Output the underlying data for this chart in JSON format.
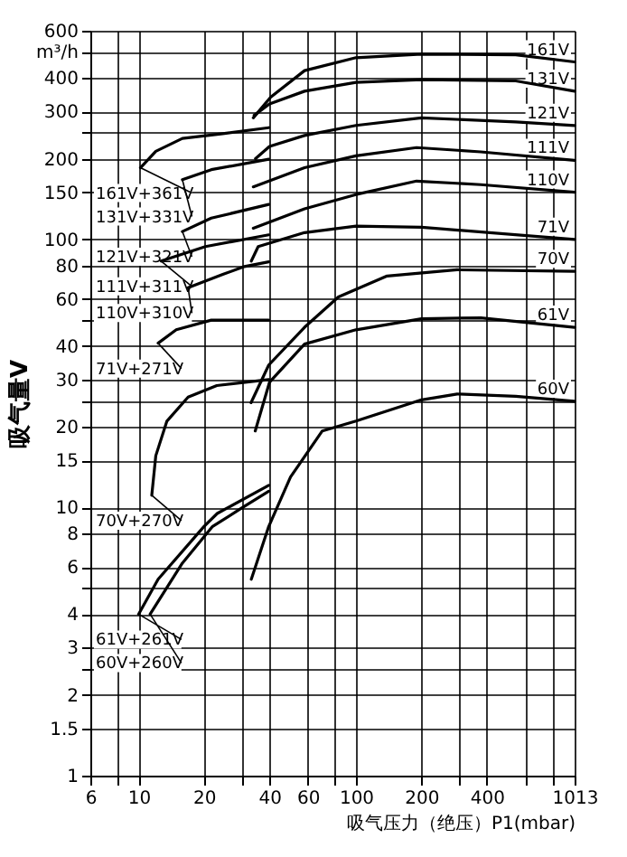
{
  "chart_data": {
    "type": "line",
    "ylabel": "吸气量V",
    "xlabel": "吸气压力（绝压）P1(mbar)",
    "log": "xy",
    "grid": true,
    "xlim": [
      6,
      1013
    ],
    "ylim": [
      1,
      600
    ],
    "xticks": [
      6,
      {
        "value": 8,
        "label": null
      },
      10,
      20,
      {
        "value": 30,
        "label": null
      },
      40,
      60,
      {
        "value": 80,
        "label": null
      },
      100,
      200,
      {
        "value": 300,
        "label": null
      },
      400,
      {
        "value": 600,
        "label": null
      },
      {
        "value": 800,
        "label": null
      },
      1013
    ],
    "yticks": [
      1,
      1.5,
      2,
      {
        "value": 2.5,
        "label": null
      },
      3,
      4,
      {
        "value": 5,
        "label": null
      },
      6,
      8,
      10,
      15,
      20,
      {
        "value": 25,
        "label": null
      },
      30,
      40,
      {
        "value": 50,
        "label": null
      },
      60,
      80,
      100,
      150,
      200,
      {
        "value": 250,
        "label": null
      },
      300,
      400,
      {
        "value": 500,
        "label": "m³/h"
      },
      600
    ],
    "series": [
      {
        "name": "161V",
        "color": "#000000",
        "x": [
          33.7,
          40.5,
          58,
          100,
          200,
          543,
          1013
        ],
        "values": [
          284,
          339,
          426,
          476,
          491,
          488,
          459
        ]
      },
      {
        "name": "131V",
        "color": "#000000",
        "x": [
          34,
          40,
          58,
          100,
          200,
          543,
          1013
        ],
        "values": [
          290,
          320,
          357,
          385,
          394,
          390,
          357
        ]
      },
      {
        "name": "121V",
        "color": "#000000",
        "x": [
          34.5,
          40,
          58,
          100,
          200,
          543,
          1013
        ],
        "values": [
          200,
          222,
          244,
          266,
          284,
          274,
          266
        ]
      },
      {
        "name": "111V",
        "color": "#000000",
        "x": [
          33.7,
          58,
          100,
          190,
          375,
          1013
        ],
        "values": [
          157,
          185,
          205,
          220,
          212,
          197
        ]
      },
      {
        "name": "110V",
        "color": "#000000",
        "x": [
          33.7,
          58,
          100,
          190,
          375,
          1013
        ],
        "values": [
          110,
          130,
          147,
          165,
          160,
          150
        ]
      },
      {
        "name": "71V",
        "color": "#000000",
        "x": [
          33,
          35.5,
          58,
          100,
          200,
          1013
        ],
        "values": [
          83,
          94,
          106,
          112,
          111,
          100
        ]
      },
      {
        "name": "70V",
        "color": "#000000",
        "x": [
          32.9,
          39.7,
          58,
          83,
          139,
          292,
          1013
        ],
        "values": [
          24.6,
          34,
          47,
          61,
          73,
          77,
          76
        ]
      },
      {
        "name": "61V",
        "color": "#000000",
        "x": [
          34.4,
          40,
          58,
          100,
          200,
          375,
          1013
        ],
        "values": [
          19.3,
          29.3,
          40.7,
          46,
          50.6,
          51,
          47
        ]
      },
      {
        "name": "60V",
        "color": "#000000",
        "x": [
          33,
          39.7,
          50,
          70,
          100,
          200,
          292,
          543,
          1013
        ],
        "values": [
          5.4,
          8.5,
          13,
          19.3,
          21,
          25.2,
          26.5,
          26,
          24.9
        ]
      },
      {
        "name": "161V+361V",
        "color": "#000000",
        "x": [
          10.2,
          12,
          15.9,
          24.4,
          39.7
        ],
        "values": [
          185,
          213,
          238,
          248,
          261
        ]
      },
      {
        "name": "131V+331V",
        "color": "#000000",
        "x": [
          15.9,
          21.6,
          39.7
        ],
        "values": [
          167,
          182,
          199
        ]
      },
      {
        "name": "121V+321V",
        "color": "#000000",
        "x": [
          15.9,
          21.6,
          39.7
        ],
        "values": [
          107,
          120,
          135
        ]
      },
      {
        "name": "111V+311V",
        "color": "#000000",
        "x": [
          12.7,
          20.3,
          39.7
        ],
        "values": [
          83,
          94,
          104
        ]
      },
      {
        "name": "110V+310V",
        "color": "#000000",
        "x": [
          16.9,
          24.4,
          30.3,
          39.7
        ],
        "values": [
          66,
          74,
          79,
          82.5
        ]
      },
      {
        "name": "71V+271V",
        "color": "#000000",
        "x": [
          12.3,
          14.9,
          21.6,
          39.7
        ],
        "values": [
          41,
          46,
          50,
          50
        ]
      },
      {
        "name": "70V+270V",
        "color": "#000000",
        "x": [
          11.5,
          12,
          13.5,
          16.9,
          22.9,
          39.7
        ],
        "values": [
          11.1,
          15.6,
          21,
          25.8,
          28.5,
          30
        ]
      },
      {
        "name": "61V+261V",
        "color": "#000000",
        "x": [
          10,
          12.3,
          20,
          23,
          39.7
        ],
        "values": [
          4,
          5.4,
          8.5,
          9.5,
          12.1
        ]
      },
      {
        "name": "60V+260V",
        "color": "#000000",
        "x": [
          11.3,
          15.9,
          21.9,
          29.5,
          39.7
        ],
        "values": [
          4,
          6.2,
          8.5,
          9.9,
          11.5
        ]
      }
    ]
  }
}
